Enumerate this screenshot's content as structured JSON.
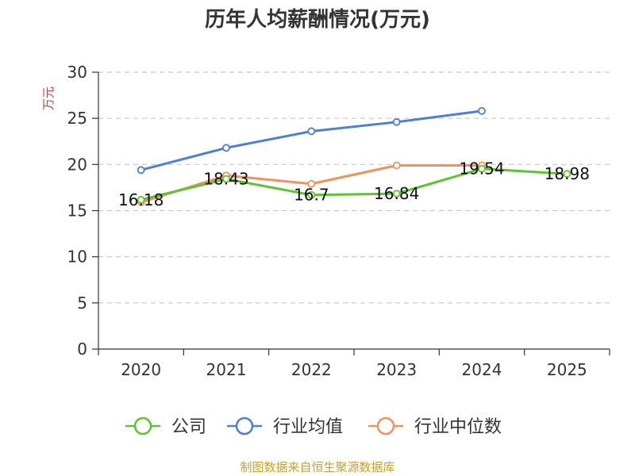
{
  "title": "历年人均薪酬情况(万元)",
  "source": "制图数据来自恒生聚源数据库",
  "chart_data": {
    "type": "line",
    "title": "历年人均薪酬情况(万元)",
    "ylabel": "万元",
    "xlabel": "",
    "categories": [
      "2020",
      "2021",
      "2022",
      "2023",
      "2024",
      "2025"
    ],
    "ylim": [
      0,
      30
    ],
    "yticks": [
      0,
      5,
      10,
      15,
      20,
      25,
      30
    ],
    "grid": "horizontal-dashed",
    "legend_position": "bottom",
    "series": [
      {
        "name": "公司",
        "color": "#5cc42e",
        "values": [
          16.18,
          18.43,
          16.7,
          16.84,
          19.54,
          18.98
        ],
        "labels": [
          "16.18",
          "18.43",
          "16.7",
          "16.84",
          "19.54",
          "18.98"
        ]
      },
      {
        "name": "行业均值",
        "color": "#4d7fd6",
        "values": [
          19.4,
          21.8,
          23.6,
          24.6,
          25.8,
          null
        ],
        "labels": null
      },
      {
        "name": "行业中位数",
        "color": "#f4915a",
        "values": [
          15.9,
          18.8,
          17.9,
          19.9,
          19.9,
          null
        ],
        "labels": null
      }
    ]
  }
}
